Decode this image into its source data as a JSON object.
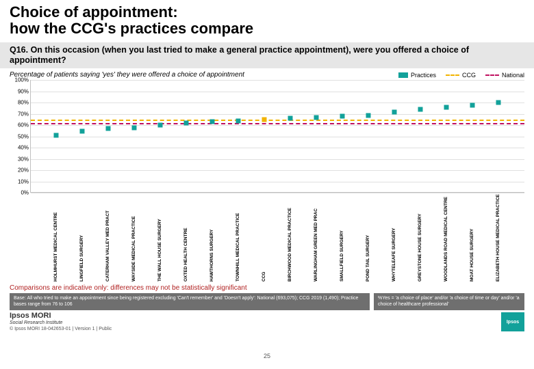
{
  "title": "Choice of appointment:\nhow the CCG's practices compare",
  "question": "Q16. On this occasion (when you last tried to make a general practice appointment), were you offered a choice of appointment?",
  "subtitle": "Percentage of patients saying 'yes' they were offered a choice of appointment",
  "legend": {
    "practices": "Practices",
    "ccg": "CCG",
    "national": "National"
  },
  "chart": {
    "type": "scatter",
    "ylim": [
      0,
      100
    ],
    "ytick_step": 10,
    "yticks": [
      "0%",
      "10%",
      "20%",
      "30%",
      "40%",
      "50%",
      "60%",
      "70%",
      "80%",
      "90%",
      "100%"
    ],
    "marker_color": "#12a19a",
    "marker_size": 7,
    "grid_color": "#e0e0e0",
    "ccg_line": {
      "value": 65,
      "color": "#f2b300"
    },
    "national_line": {
      "value": 62,
      "color": "#c01060"
    },
    "categories": [
      "HOLMHURST MEDICAL CENTRE",
      "LINGFIELD SURGERY",
      "CATERHAM VALLEY MED PRACT",
      "WAYSIDE MEDICAL PRACTICE",
      "THE WALL HOUSE SURGERY",
      "OXTED HEALTH CENTRE",
      "HAWTHORNS SURGERY",
      "TOWNHILL MEDICAL PRACTICE",
      "CCG",
      "BIRCHWOOD MEDICAL PRACTICE",
      "WARLINGHAM GREEN MED PRAC",
      "SMALLFIELD SURGERY",
      "POND TAIL SURGERY",
      "WHYTELEAFE SURGERY",
      "GREYSTONE HOUSE SURGERY",
      "WOODLANDS ROAD MEDICAL CENTRE",
      "MOAT HOUSE SURGERY",
      "ELIZABETH HOUSE MEDICAL PRACTICE"
    ],
    "values": [
      51,
      55,
      57,
      58,
      60,
      62,
      63,
      64,
      65,
      66,
      67,
      68,
      69,
      72,
      74,
      76,
      78,
      80
    ],
    "is_ccg_index": 8
  },
  "comparisons_note": "Comparisons are indicative only: differences may not be statistically significant",
  "footnote_left": "Base: All who tried to make an appointment since being registered excluding 'Can't remember' and 'Doesn't apply': National (693,075); CCG 2019 (1,490); Practice bases range from 76 to 106",
  "footnote_right": "%Yes = 'a choice of place' and/or 'a choice of time or day' and/or 'a choice of healthcare professional'",
  "brand": "Ipsos MORI",
  "brand_sub": "Social Research Institute",
  "copyright": "© Ipsos MORI   18-042653-01 | Version 1 | Public",
  "page_number": "25",
  "logo_text": "Ipsos"
}
